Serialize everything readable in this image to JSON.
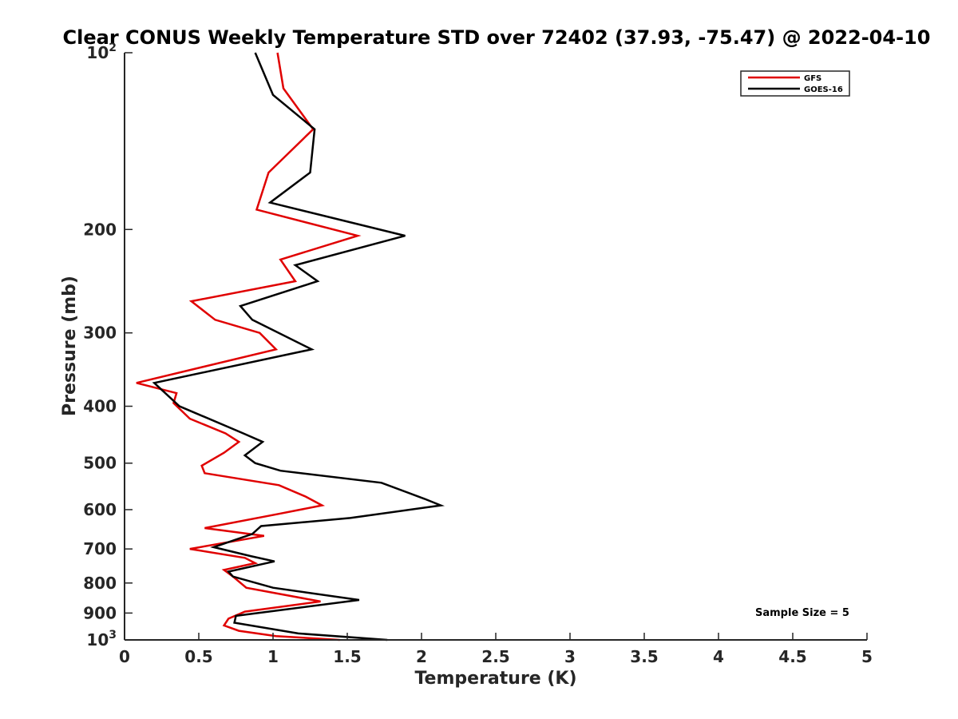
{
  "chart_data": {
    "type": "line",
    "title": "Clear CONUS Weekly Temperature STD over 72402 (37.93, -75.47) @ 2022-04-10",
    "xlabel": "Temperature (K)",
    "ylabel": "Pressure (mb)",
    "xlim": [
      0,
      5
    ],
    "ylim": [
      100,
      1000
    ],
    "y_scale": "log",
    "y_reversed": true,
    "grid": false,
    "legend_position": "top-right",
    "x_ticks": [
      "0",
      "0.5",
      "1",
      "1.5",
      "2",
      "2.5",
      "3",
      "3.5",
      "4",
      "4.5",
      "5"
    ],
    "y_ticks": [
      {
        "value": 100,
        "base": "10",
        "exp": "2"
      },
      {
        "value": 200,
        "label": "200"
      },
      {
        "value": 300,
        "label": "300"
      },
      {
        "value": 400,
        "label": "400"
      },
      {
        "value": 500,
        "label": "500"
      },
      {
        "value": 600,
        "label": "600"
      },
      {
        "value": 700,
        "label": "700"
      },
      {
        "value": 800,
        "label": "800"
      },
      {
        "value": 900,
        "label": "900"
      },
      {
        "value": 1000,
        "base": "10",
        "exp": "3"
      }
    ],
    "annotation": "Sample Size = 5",
    "series": [
      {
        "name": "GFS",
        "color": "#e00000",
        "points": [
          [
            1.03,
            100
          ],
          [
            1.07,
            115
          ],
          [
            1.27,
            135
          ],
          [
            0.97,
            160
          ],
          [
            0.89,
            185
          ],
          [
            1.57,
            205
          ],
          [
            1.05,
            225
          ],
          [
            1.15,
            245
          ],
          [
            0.45,
            265
          ],
          [
            0.61,
            285
          ],
          [
            0.91,
            300
          ],
          [
            1.02,
            320
          ],
          [
            0.08,
            365
          ],
          [
            0.35,
            380
          ],
          [
            0.33,
            395
          ],
          [
            0.44,
            420
          ],
          [
            0.68,
            445
          ],
          [
            0.77,
            460
          ],
          [
            0.67,
            480
          ],
          [
            0.52,
            505
          ],
          [
            0.54,
            520
          ],
          [
            1.04,
            545
          ],
          [
            1.22,
            570
          ],
          [
            1.33,
            590
          ],
          [
            1.04,
            610
          ],
          [
            0.54,
            645
          ],
          [
            0.94,
            665
          ],
          [
            0.44,
            700
          ],
          [
            0.81,
            725
          ],
          [
            0.88,
            740
          ],
          [
            0.67,
            760
          ],
          [
            0.73,
            780
          ],
          [
            0.82,
            815
          ],
          [
            1.32,
            860
          ],
          [
            0.81,
            895
          ],
          [
            0.7,
            920
          ],
          [
            0.67,
            945
          ],
          [
            0.77,
            965
          ],
          [
            1.02,
            985
          ],
          [
            1.45,
            1000
          ]
        ]
      },
      {
        "name": "GOES-16",
        "color": "#000000",
        "points": [
          [
            0.88,
            100
          ],
          [
            1.0,
            118
          ],
          [
            1.28,
            135
          ],
          [
            1.25,
            160
          ],
          [
            0.98,
            180
          ],
          [
            1.89,
            205
          ],
          [
            1.15,
            230
          ],
          [
            1.3,
            245
          ],
          [
            0.78,
            270
          ],
          [
            0.86,
            285
          ],
          [
            1.26,
            320
          ],
          [
            0.2,
            365
          ],
          [
            0.37,
            400
          ],
          [
            0.8,
            445
          ],
          [
            0.93,
            460
          ],
          [
            0.81,
            485
          ],
          [
            0.88,
            500
          ],
          [
            1.05,
            515
          ],
          [
            1.73,
            540
          ],
          [
            2.02,
            575
          ],
          [
            2.13,
            590
          ],
          [
            1.52,
            620
          ],
          [
            0.92,
            640
          ],
          [
            0.86,
            660
          ],
          [
            0.6,
            695
          ],
          [
            0.85,
            720
          ],
          [
            1.01,
            735
          ],
          [
            0.7,
            765
          ],
          [
            0.73,
            780
          ],
          [
            1.0,
            815
          ],
          [
            1.58,
            855
          ],
          [
            0.75,
            910
          ],
          [
            0.74,
            935
          ],
          [
            1.17,
            975
          ],
          [
            1.77,
            1000
          ]
        ]
      }
    ]
  }
}
